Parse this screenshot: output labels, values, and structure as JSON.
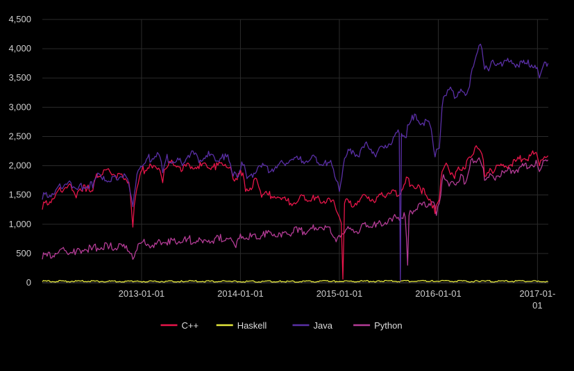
{
  "chart_data": {
    "type": "line",
    "title": "",
    "xlabel": "",
    "ylabel": "",
    "x_range": [
      "2012-01-01",
      "2017-02-10"
    ],
    "ylim": [
      0,
      4500
    ],
    "y_ticks": [
      0,
      500,
      1000,
      1500,
      2000,
      2500,
      3000,
      3500,
      4000,
      4500
    ],
    "y_tick_labels": [
      "0",
      "500",
      "1,000",
      "1,500",
      "2,000",
      "2,500",
      "3,000",
      "3,500",
      "4,000",
      "4,500"
    ],
    "x_ticks": [
      {
        "date": "2013-01-01",
        "lines": [
          "2013-01-01"
        ]
      },
      {
        "date": "2014-01-01",
        "lines": [
          "2014-01-01"
        ]
      },
      {
        "date": "2015-01-01",
        "lines": [
          "2015-01-01"
        ]
      },
      {
        "date": "2016-01-01",
        "lines": [
          "2016-01-01"
        ]
      },
      {
        "date": "2017-01-01",
        "lines": [
          "2017-01-",
          "01"
        ]
      }
    ],
    "grid": {
      "vertical": true,
      "horizontal": true
    },
    "legend_position": "bottom-center",
    "series": [
      {
        "name": "C++",
        "color": "#e8154a",
        "points": [
          [
            "2012-01-01",
            1250
          ],
          [
            "2012-01-20",
            1330
          ],
          [
            "2012-02-15",
            1450
          ],
          [
            "2012-03-10",
            1560
          ],
          [
            "2012-04-01",
            1620
          ],
          [
            "2012-04-20",
            1580
          ],
          [
            "2012-05-05",
            1450
          ],
          [
            "2012-05-15",
            1580
          ],
          [
            "2012-06-10",
            1560
          ],
          [
            "2012-07-05",
            1570
          ],
          [
            "2012-07-15",
            1790
          ],
          [
            "2012-08-10",
            1850
          ],
          [
            "2012-09-10",
            1870
          ],
          [
            "2012-10-01",
            1780
          ],
          [
            "2012-10-25",
            1790
          ],
          [
            "2012-11-15",
            1720
          ],
          [
            "2012-11-25",
            1250
          ],
          [
            "2012-11-30",
            950
          ],
          [
            "2012-12-10",
            1480
          ],
          [
            "2012-12-25",
            1820
          ],
          [
            "2013-01-15",
            1920
          ],
          [
            "2013-02-10",
            1960
          ],
          [
            "2013-03-10",
            1920
          ],
          [
            "2013-03-20",
            1710
          ],
          [
            "2013-04-01",
            1950
          ],
          [
            "2013-05-01",
            2000
          ],
          [
            "2013-06-01",
            1920
          ],
          [
            "2013-07-01",
            1950
          ],
          [
            "2013-08-01",
            1950
          ],
          [
            "2013-09-01",
            1970
          ],
          [
            "2013-10-01",
            1930
          ],
          [
            "2013-11-01",
            2000
          ],
          [
            "2013-11-20",
            1960
          ],
          [
            "2013-12-05",
            1770
          ],
          [
            "2013-12-20",
            1760
          ],
          [
            "2014-01-10",
            1880
          ],
          [
            "2014-01-20",
            1560
          ],
          [
            "2014-02-10",
            1590
          ],
          [
            "2014-03-01",
            1780
          ],
          [
            "2014-03-20",
            1460
          ],
          [
            "2014-05-01",
            1450
          ],
          [
            "2014-06-01",
            1420
          ],
          [
            "2014-07-01",
            1330
          ],
          [
            "2014-08-01",
            1390
          ],
          [
            "2014-09-01",
            1420
          ],
          [
            "2014-10-01",
            1410
          ],
          [
            "2014-11-01",
            1370
          ],
          [
            "2014-12-01",
            1380
          ],
          [
            "2014-12-20",
            1240
          ],
          [
            "2015-01-01",
            1120
          ],
          [
            "2015-01-08",
            1020
          ],
          [
            "2015-01-14",
            60
          ],
          [
            "2015-01-20",
            1360
          ],
          [
            "2015-02-15",
            1300
          ],
          [
            "2015-03-15",
            1380
          ],
          [
            "2015-04-15",
            1440
          ],
          [
            "2015-05-15",
            1390
          ],
          [
            "2015-06-15",
            1480
          ],
          [
            "2015-07-10",
            1530
          ],
          [
            "2015-08-10",
            1500
          ],
          [
            "2015-09-01",
            1700
          ],
          [
            "2015-10-01",
            1650
          ],
          [
            "2015-11-01",
            1520
          ],
          [
            "2015-12-01",
            1430
          ],
          [
            "2015-12-20",
            1180
          ],
          [
            "2016-01-05",
            1420
          ],
          [
            "2016-01-15",
            1900
          ],
          [
            "2016-01-25",
            2000
          ],
          [
            "2016-02-10",
            1920
          ],
          [
            "2016-03-01",
            1780
          ],
          [
            "2016-03-20",
            1930
          ],
          [
            "2016-04-10",
            1950
          ],
          [
            "2016-04-25",
            2150
          ],
          [
            "2016-05-10",
            2200
          ],
          [
            "2016-05-25",
            2300
          ],
          [
            "2016-06-10",
            2200
          ],
          [
            "2016-06-20",
            1820
          ],
          [
            "2016-07-05",
            1880
          ],
          [
            "2016-07-25",
            1900
          ],
          [
            "2016-12-31",
            2170
          ],
          [
            "2017-01-08",
            2000
          ],
          [
            "2017-01-18",
            2100
          ],
          [
            "2017-02-05",
            2150
          ],
          [
            "2017-02-09",
            2170
          ]
        ]
      },
      {
        "name": "Haskell",
        "color": "#e5e83c",
        "points": [
          [
            "2012-01-01",
            18
          ],
          [
            "2012-06-01",
            20
          ],
          [
            "2012-12-01",
            15
          ],
          [
            "2013-06-01",
            20
          ],
          [
            "2013-12-01",
            17
          ],
          [
            "2014-06-01",
            15
          ],
          [
            "2014-12-01",
            18
          ],
          [
            "2015-06-01",
            20
          ],
          [
            "2015-12-01",
            22
          ],
          [
            "2016-06-01",
            18
          ],
          [
            "2016-12-31",
            20
          ],
          [
            "2017-02-09",
            18
          ]
        ]
      },
      {
        "name": "Java",
        "color": "#5a2fa6",
        "points": [
          [
            "2012-01-01",
            1420
          ],
          [
            "2012-01-20",
            1460
          ],
          [
            "2012-02-15",
            1520
          ],
          [
            "2012-03-10",
            1620
          ],
          [
            "2012-04-01",
            1680
          ],
          [
            "2012-04-20",
            1620
          ],
          [
            "2012-05-10",
            1590
          ],
          [
            "2012-06-10",
            1620
          ],
          [
            "2012-07-05",
            1620
          ],
          [
            "2012-07-15",
            1780
          ],
          [
            "2012-08-10",
            1760
          ],
          [
            "2012-09-10",
            1730
          ],
          [
            "2012-10-01",
            1760
          ],
          [
            "2012-10-25",
            1800
          ],
          [
            "2012-11-15",
            1680
          ],
          [
            "2012-11-25",
            1450
          ],
          [
            "2012-11-30",
            1300
          ],
          [
            "2012-12-10",
            1650
          ],
          [
            "2012-12-25",
            1950
          ],
          [
            "2013-01-15",
            2050
          ],
          [
            "2013-02-10",
            2120
          ],
          [
            "2013-03-10",
            2150
          ],
          [
            "2013-03-20",
            1880
          ],
          [
            "2013-04-01",
            2100
          ],
          [
            "2013-05-01",
            2050
          ],
          [
            "2013-06-01",
            2000
          ],
          [
            "2013-07-01",
            2200
          ],
          [
            "2013-08-01",
            2050
          ],
          [
            "2013-09-01",
            2150
          ],
          [
            "2013-10-01",
            2080
          ],
          [
            "2013-11-01",
            2100
          ],
          [
            "2013-11-20",
            2080
          ],
          [
            "2013-12-05",
            1820
          ],
          [
            "2013-12-20",
            1800
          ],
          [
            "2014-01-10",
            2010
          ],
          [
            "2014-01-25",
            1780
          ],
          [
            "2014-02-15",
            1800
          ],
          [
            "2014-03-15",
            2000
          ],
          [
            "2014-04-15",
            1880
          ],
          [
            "2014-05-15",
            1960
          ],
          [
            "2014-06-15",
            2000
          ],
          [
            "2014-07-15",
            2100
          ],
          [
            "2014-08-15",
            2050
          ],
          [
            "2014-09-15",
            2100
          ],
          [
            "2014-10-15",
            2050
          ],
          [
            "2014-11-15",
            2000
          ],
          [
            "2014-12-05",
            2000
          ],
          [
            "2014-12-20",
            1750
          ],
          [
            "2015-01-01",
            1560
          ],
          [
            "2015-01-10",
            1800
          ],
          [
            "2015-01-25",
            2150
          ],
          [
            "2015-02-15",
            2200
          ],
          [
            "2015-03-15",
            2150
          ],
          [
            "2015-04-15",
            2350
          ],
          [
            "2015-05-15",
            2150
          ],
          [
            "2015-06-15",
            2300
          ],
          [
            "2015-07-15",
            2400
          ],
          [
            "2015-08-10",
            2550
          ],
          [
            "2015-08-14",
            30
          ],
          [
            "2015-08-18",
            2550
          ],
          [
            "2015-09-05",
            2480
          ],
          [
            "2015-09-10",
            2700
          ],
          [
            "2015-10-01",
            2780
          ],
          [
            "2015-11-01",
            2720
          ],
          [
            "2015-12-01",
            2700
          ],
          [
            "2015-12-20",
            2150
          ],
          [
            "2016-01-05",
            2300
          ],
          [
            "2016-01-15",
            3000
          ],
          [
            "2016-01-25",
            3200
          ],
          [
            "2016-02-10",
            3300
          ],
          [
            "2016-03-01",
            3150
          ],
          [
            "2016-03-20",
            3250
          ],
          [
            "2016-04-10",
            3200
          ],
          [
            "2016-04-25",
            3350
          ],
          [
            "2016-05-10",
            3700
          ],
          [
            "2016-05-25",
            3950
          ],
          [
            "2016-06-10",
            4000
          ],
          [
            "2016-06-20",
            3650
          ],
          [
            "2016-07-05",
            3620
          ],
          [
            "2016-07-25",
            3750
          ],
          [
            "2016-12-31",
            3680
          ],
          [
            "2017-01-08",
            3500
          ],
          [
            "2017-01-18",
            3650
          ],
          [
            "2017-02-05",
            3700
          ],
          [
            "2017-02-09",
            3750
          ]
        ]
      },
      {
        "name": "Python",
        "color": "#b53c97",
        "points": [
          [
            "2012-01-01",
            400
          ],
          [
            "2012-02-01",
            420
          ],
          [
            "2012-03-01",
            520
          ],
          [
            "2012-04-01",
            510
          ],
          [
            "2012-05-01",
            480
          ],
          [
            "2012-06-01",
            540
          ],
          [
            "2012-07-01",
            560
          ],
          [
            "2012-08-01",
            570
          ],
          [
            "2012-09-01",
            580
          ],
          [
            "2012-10-01",
            560
          ],
          [
            "2012-11-01",
            590
          ],
          [
            "2012-11-25",
            500
          ],
          [
            "2012-11-30",
            400
          ],
          [
            "2012-12-15",
            560
          ],
          [
            "2013-01-15",
            660
          ],
          [
            "2013-02-15",
            600
          ],
          [
            "2013-03-15",
            650
          ],
          [
            "2013-04-15",
            660
          ],
          [
            "2013-05-15",
            680
          ],
          [
            "2013-06-15",
            700
          ],
          [
            "2013-07-15",
            690
          ],
          [
            "2013-08-15",
            680
          ],
          [
            "2013-09-15",
            700
          ],
          [
            "2013-10-15",
            720
          ],
          [
            "2013-11-15",
            750
          ],
          [
            "2013-12-01",
            720
          ],
          [
            "2013-12-15",
            600
          ],
          [
            "2014-01-05",
            760
          ],
          [
            "2014-02-01",
            740
          ],
          [
            "2014-03-01",
            750
          ],
          [
            "2014-04-01",
            780
          ],
          [
            "2014-05-01",
            800
          ],
          [
            "2014-06-01",
            780
          ],
          [
            "2014-07-01",
            820
          ],
          [
            "2014-08-01",
            860
          ],
          [
            "2014-09-01",
            840
          ],
          [
            "2014-10-01",
            900
          ],
          [
            "2014-11-01",
            920
          ],
          [
            "2014-12-01",
            850
          ],
          [
            "2014-12-20",
            700
          ],
          [
            "2015-01-05",
            780
          ],
          [
            "2015-01-20",
            850
          ],
          [
            "2015-02-15",
            900
          ],
          [
            "2015-03-15",
            860
          ],
          [
            "2015-04-15",
            980
          ],
          [
            "2015-05-15",
            950
          ],
          [
            "2015-06-15",
            1000
          ],
          [
            "2015-07-15",
            1050
          ],
          [
            "2015-08-15",
            1100
          ],
          [
            "2015-09-01",
            1120
          ],
          [
            "2015-09-10",
            300
          ],
          [
            "2015-09-15",
            1150
          ],
          [
            "2015-10-15",
            1250
          ],
          [
            "2015-11-15",
            1300
          ],
          [
            "2015-12-15",
            1380
          ],
          [
            "2015-12-25",
            1150
          ],
          [
            "2016-01-10",
            1500
          ],
          [
            "2016-01-20",
            1850
          ],
          [
            "2016-02-10",
            1650
          ],
          [
            "2016-03-01",
            1680
          ],
          [
            "2016-03-20",
            1750
          ],
          [
            "2016-04-10",
            1700
          ],
          [
            "2016-04-25",
            1950
          ],
          [
            "2016-05-10",
            2050
          ],
          [
            "2016-05-25",
            2100
          ],
          [
            "2016-06-10",
            2000
          ],
          [
            "2016-06-20",
            1750
          ],
          [
            "2016-07-05",
            1800
          ],
          [
            "2016-07-25",
            1780
          ],
          [
            "2016-12-31",
            2020
          ],
          [
            "2017-01-08",
            1900
          ],
          [
            "2017-01-18",
            2000
          ],
          [
            "2017-02-05",
            2080
          ],
          [
            "2017-02-09",
            2100
          ]
        ]
      }
    ]
  }
}
